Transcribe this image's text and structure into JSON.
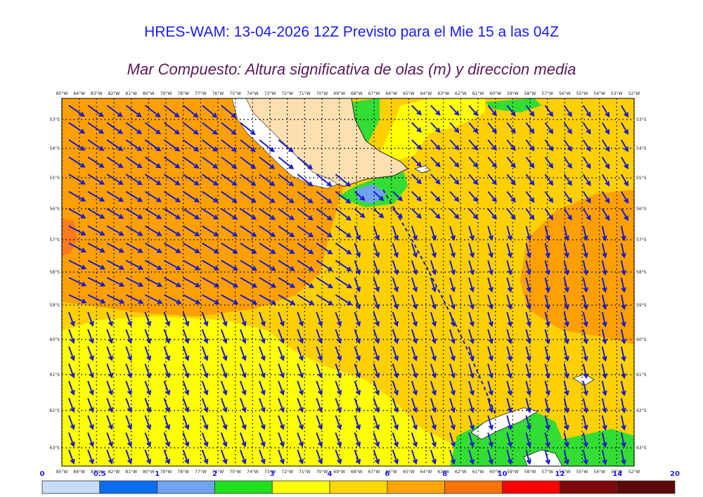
{
  "title": "HRES-WAM: 13-04-2026 12Z Previsto para el Mie 15 a las 04Z",
  "subtitle": "Mar Compuesto: Altura significativa de olas (m) y direccion media",
  "lon_labels": [
    "85°W",
    "84°W",
    "83°W",
    "82°W",
    "81°W",
    "80°W",
    "79°W",
    "78°W",
    "77°W",
    "76°W",
    "75°W",
    "74°W",
    "73°W",
    "72°W",
    "71°W",
    "70°W",
    "69°W",
    "68°W",
    "67°W",
    "66°W",
    "65°W",
    "64°W",
    "63°W",
    "62°W",
    "61°W",
    "60°W",
    "59°W",
    "58°W",
    "57°W",
    "56°W",
    "55°W",
    "54°W",
    "53°W",
    "52°W"
  ],
  "lat_labels": [
    "53°S",
    "54°S",
    "55°S",
    "56°S",
    "57°S",
    "58°S",
    "59°S",
    "60°S",
    "61°S",
    "62°S",
    "63°S"
  ],
  "colorbar": {
    "ticks": [
      "0",
      "0.5",
      "1",
      "2",
      "3",
      "4",
      "6",
      "8",
      "10",
      "12",
      "14",
      "20"
    ],
    "colors": [
      "#c6dcf7",
      "#0a6ef0",
      "#6fa3f0",
      "#1fe01f",
      "#ffff00",
      "#ffd700",
      "#ffa500",
      "#ff7300",
      "#ff0000",
      "#7d0a0a",
      "#5a0808",
      "#333333"
    ]
  },
  "legend": {
    "low_wave": "#ffff00",
    "mid_wave": "#ffd000",
    "high_wave": "#ffa000",
    "peak_wave": "#ff7a1a",
    "calm_wave": "#33dd33",
    "land": "#fce0b0",
    "arrow": "#1a1acc"
  }
}
